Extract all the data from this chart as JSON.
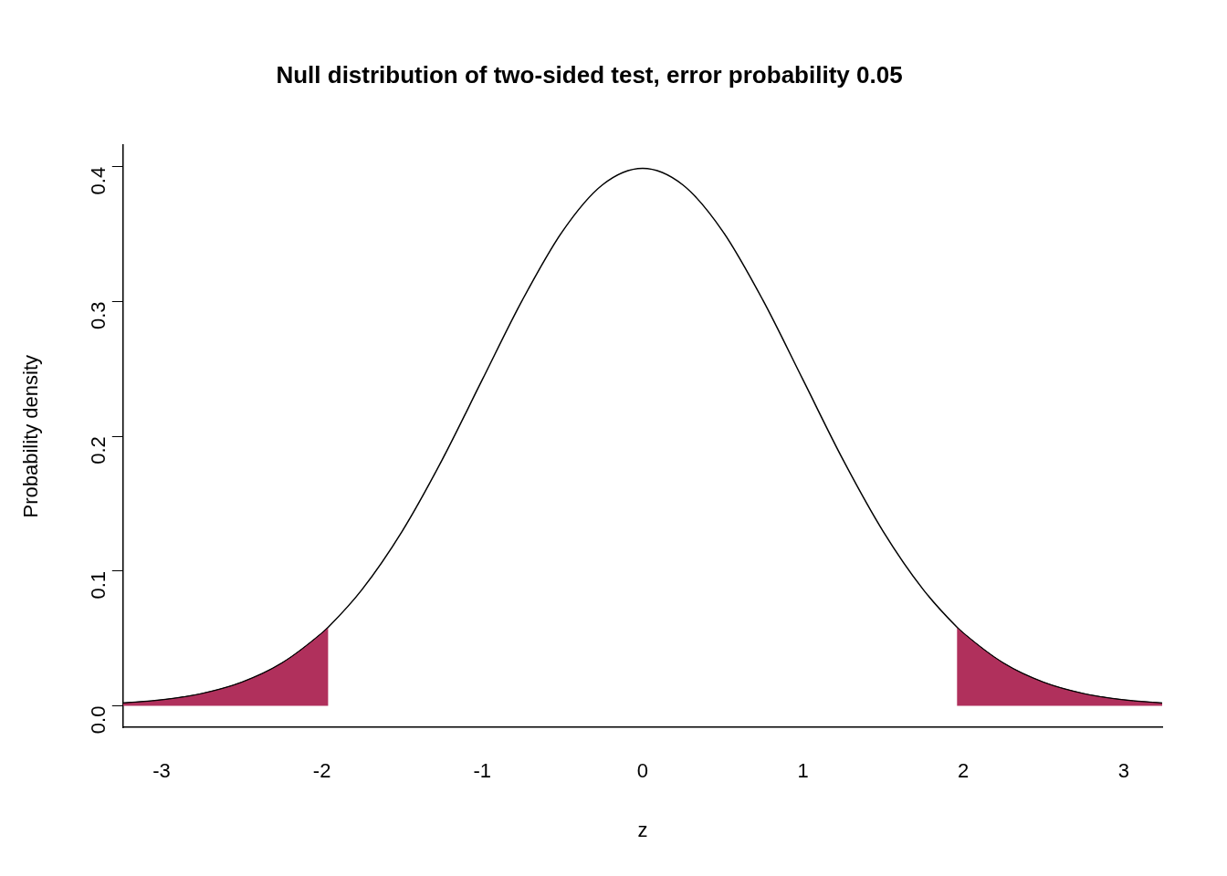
{
  "chart_data": {
    "type": "line",
    "title": "Null distribution of two-sided test, error probability 0.05",
    "xlabel": "z",
    "ylabel": "Probability density",
    "xlim": [
      -3.24,
      3.24
    ],
    "xticks": [
      -3,
      -2,
      -1,
      0,
      1,
      2,
      3
    ],
    "ylim": [
      -0.016,
      0.416
    ],
    "yticks": [
      {
        "value": 0,
        "label": "0.0"
      },
      {
        "value": 0.1,
        "label": "0.1"
      },
      {
        "value": 0.2,
        "label": "0.2"
      },
      {
        "value": 0.3,
        "label": "0.3"
      },
      {
        "value": 0.4,
        "label": "0.4"
      }
    ],
    "grid": false,
    "legend": false,
    "marker": "none",
    "line_style": "solid",
    "series": [
      {
        "type": "area",
        "color": "#b0305c",
        "x": [
          -3.24,
          -3,
          -2.75,
          -2.5,
          -2.25,
          -2,
          -1.96
        ],
        "values": [
          0.0021,
          0.0044,
          0.0091,
          0.0175,
          0.0317,
          0.054,
          0.0584
        ]
      },
      {
        "type": "area",
        "color": "#b0305c",
        "x": [
          1.96,
          2,
          2.25,
          2.5,
          2.75,
          3,
          3.24
        ],
        "values": [
          0.0584,
          0.054,
          0.0317,
          0.0175,
          0.0091,
          0.0044,
          0.0021
        ]
      },
      {
        "color": "#000000",
        "x": [
          -3.24,
          -3,
          -2.75,
          -2.5,
          -2.25,
          -2,
          -1.96,
          -1.75,
          -1.5,
          -1.25,
          -1,
          -0.75,
          -0.5,
          -0.25,
          0,
          0.25,
          0.5,
          0.75,
          1,
          1.25,
          1.5,
          1.75,
          1.96,
          2,
          2.25,
          2.5,
          2.75,
          3,
          3.24
        ],
        "values": [
          0.0021,
          0.0044,
          0.0091,
          0.0175,
          0.0317,
          0.054,
          0.0584,
          0.0863,
          0.1295,
          0.1826,
          0.242,
          0.3011,
          0.3521,
          0.3867,
          0.3989,
          0.3867,
          0.3521,
          0.3011,
          0.242,
          0.1826,
          0.1295,
          0.0863,
          0.0584,
          0.054,
          0.0317,
          0.0175,
          0.0091,
          0.0044,
          0.0021
        ]
      }
    ]
  }
}
